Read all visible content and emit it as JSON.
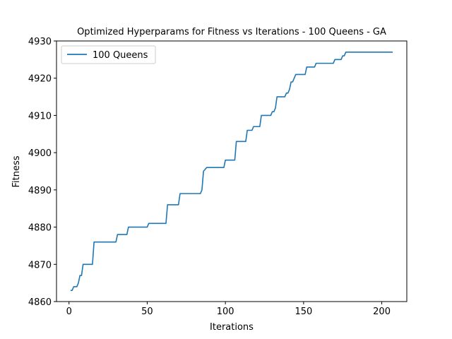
{
  "chart_data": {
    "type": "line",
    "title": "Optimized Hyperparams for Fitness vs Iterations - 100 Queens - GA",
    "xlabel": "Iterations",
    "ylabel": "Fitness",
    "xlim": [
      -8,
      216
    ],
    "ylim": [
      4860,
      4930
    ],
    "xticks": [
      0,
      50,
      100,
      150,
      200
    ],
    "yticks": [
      4860,
      4870,
      4880,
      4890,
      4900,
      4910,
      4920,
      4930
    ],
    "grid": false,
    "legend_position": "upper-left",
    "series": [
      {
        "name": "100 Queens",
        "color": "#1f77b4",
        "x": [
          1,
          2,
          3,
          5,
          6,
          7,
          8,
          9,
          15,
          16,
          30,
          31,
          37,
          38,
          50,
          51,
          62,
          63,
          70,
          71,
          84,
          85,
          86,
          88,
          99,
          100,
          106,
          107,
          113,
          114,
          117,
          118,
          122,
          123,
          129,
          130,
          131,
          132,
          133,
          134,
          138,
          139,
          140,
          141,
          142,
          143,
          144,
          145,
          151,
          152,
          157,
          158,
          162,
          163,
          169,
          170,
          174,
          175,
          176,
          177,
          207
        ],
        "y": [
          4863,
          4863,
          4864,
          4864,
          4865,
          4867,
          4867,
          4870,
          4870,
          4876,
          4876,
          4878,
          4878,
          4880,
          4880,
          4881,
          4881,
          4886,
          4886,
          4889,
          4889,
          4890,
          4895,
          4896,
          4896,
          4898,
          4898,
          4903,
          4903,
          4906,
          4906,
          4907,
          4907,
          4910,
          4910,
          4911,
          4911,
          4912,
          4915,
          4915,
          4915,
          4916,
          4916,
          4917,
          4919,
          4919,
          4920,
          4921,
          4921,
          4923,
          4923,
          4924,
          4924,
          4924,
          4924,
          4925,
          4925,
          4926,
          4926,
          4927,
          4927
        ]
      }
    ]
  }
}
